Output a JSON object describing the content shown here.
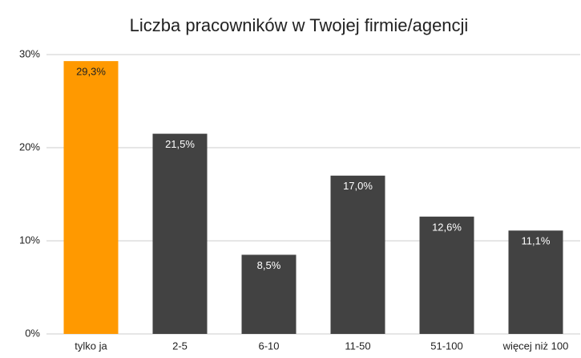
{
  "chart_data": {
    "type": "bar",
    "title": "Liczba pracowników w Twojej firmie/agencji",
    "categories": [
      "tylko ja",
      "2-5",
      "6-10",
      "11-50",
      "51-100",
      "więcej niż 100"
    ],
    "values": [
      29.3,
      21.5,
      8.5,
      17.0,
      12.6,
      11.1
    ],
    "value_labels": [
      "29,3%",
      "21,5%",
      "8,5%",
      "17,0%",
      "12,6%",
      "11,1%"
    ],
    "colors": [
      "#ff9900",
      "#424242",
      "#424242",
      "#424242",
      "#424242",
      "#424242"
    ],
    "ylim": [
      0,
      30
    ],
    "yticks": [
      {
        "value": 0,
        "label": "0%"
      },
      {
        "value": 10,
        "label": "10%"
      },
      {
        "value": 20,
        "label": "20%"
      },
      {
        "value": 30,
        "label": "30%"
      }
    ],
    "grid": true
  }
}
